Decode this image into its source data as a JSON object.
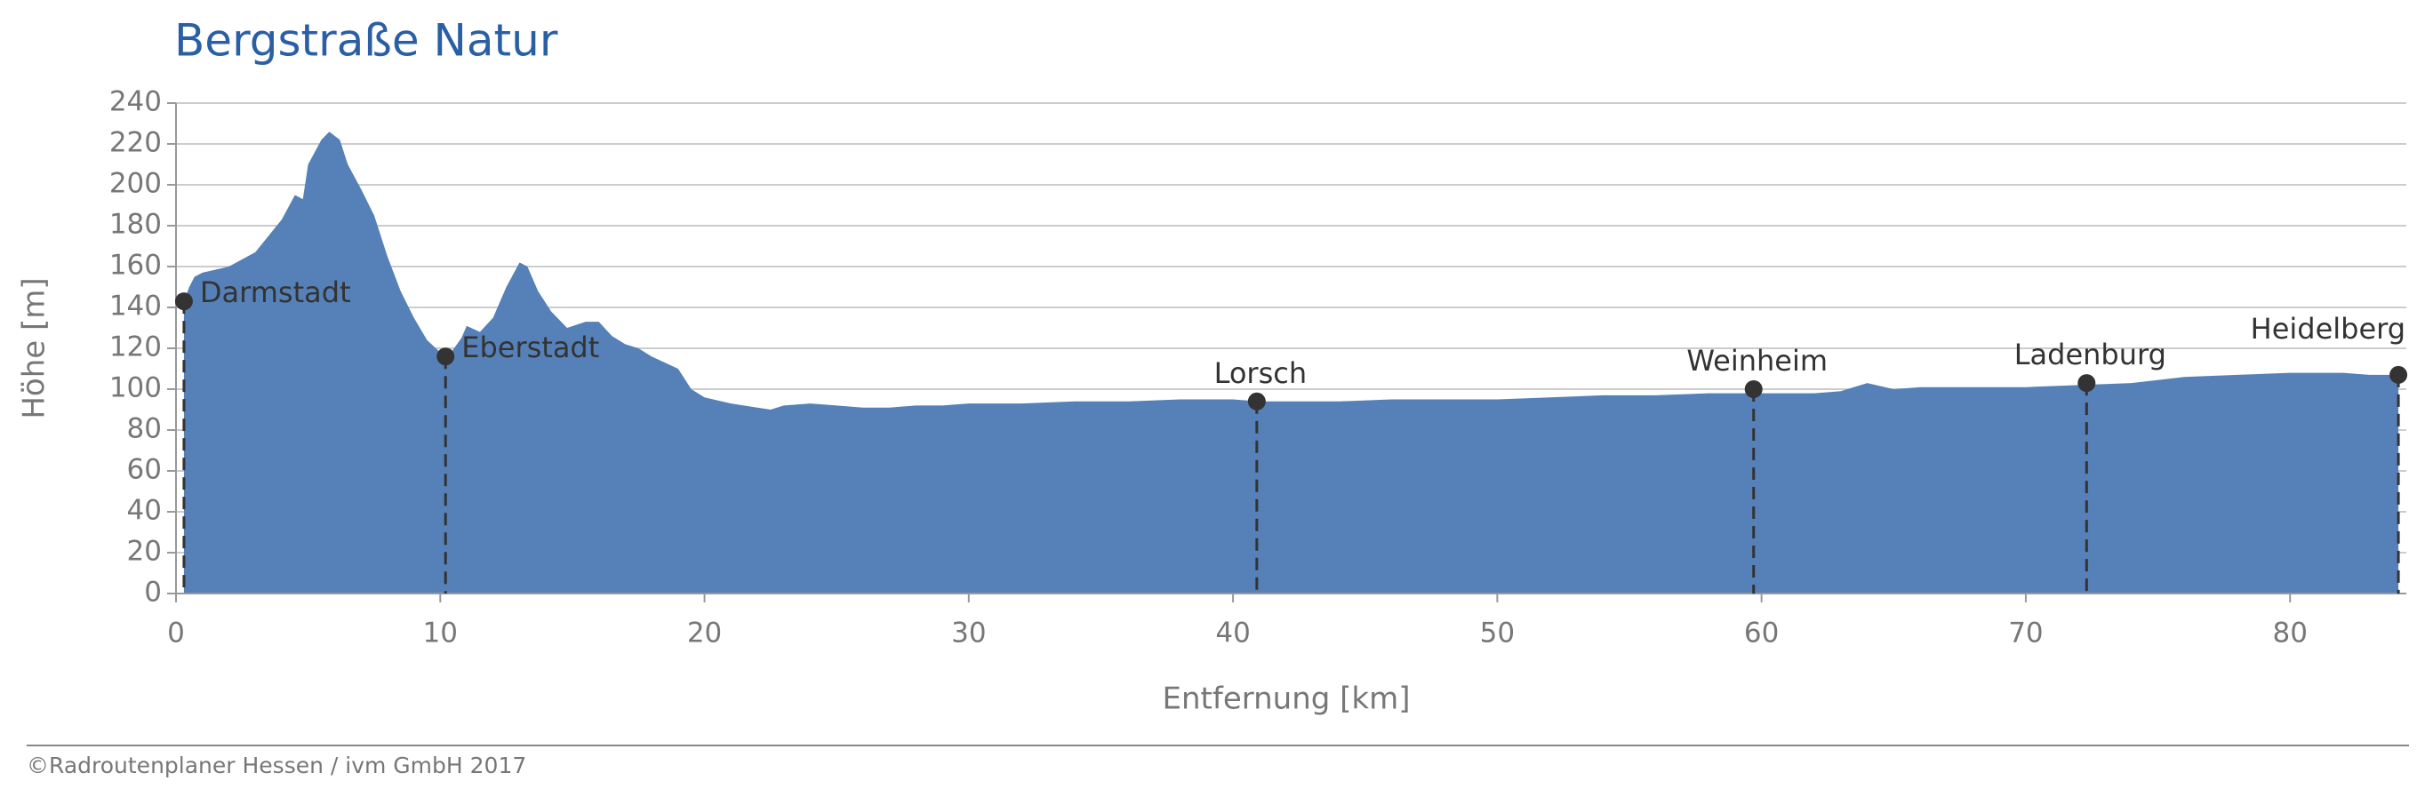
{
  "chart_data": {
    "type": "area",
    "title": "Bergstraße Natur",
    "xlabel": "Entfernung [km]",
    "ylabel": "Höhe [m]",
    "color": "#5581b8",
    "grid": true,
    "xlim": [
      0,
      84.4
    ],
    "ylim": [
      0,
      240
    ],
    "xticks": [
      0,
      10,
      20,
      30,
      40,
      50,
      60,
      70,
      80
    ],
    "yticks": [
      0,
      20,
      40,
      60,
      80,
      100,
      120,
      140,
      160,
      180,
      200,
      220,
      240
    ],
    "x": [
      0.3,
      0.5,
      0.7,
      1,
      2,
      3,
      4,
      4.5,
      4.8,
      5,
      5.5,
      5.8,
      6.2,
      6.5,
      7,
      7.5,
      8,
      8.5,
      9,
      9.5,
      10,
      10.3,
      10.8,
      11,
      11.5,
      12,
      12.5,
      13,
      13.3,
      13.7,
      14.2,
      14.8,
      15.5,
      16,
      16.5,
      17,
      17.5,
      18,
      18.5,
      19,
      19.5,
      20,
      21,
      22,
      22.5,
      23,
      24,
      25,
      26,
      27,
      28,
      29,
      30,
      32,
      34,
      36,
      38,
      40,
      41,
      42,
      44,
      46,
      48,
      50,
      52,
      54,
      56,
      58,
      60,
      62,
      63,
      64,
      65,
      66,
      68,
      70,
      72,
      74,
      76,
      78,
      80,
      82,
      83,
      84.1
    ],
    "values": [
      143,
      150,
      155,
      157,
      160,
      167,
      183,
      195,
      193,
      210,
      222,
      226,
      222,
      210,
      198,
      185,
      165,
      148,
      135,
      124,
      118,
      116,
      125,
      131,
      128,
      135,
      150,
      162,
      160,
      148,
      138,
      130,
      133,
      133,
      126,
      122,
      120,
      116,
      113,
      110,
      100,
      96,
      93,
      91,
      90,
      92,
      93,
      92,
      91,
      91,
      92,
      92,
      93,
      93,
      94,
      94,
      95,
      95,
      94,
      94,
      94,
      95,
      95,
      95,
      96,
      97,
      97,
      98,
      98,
      98,
      99,
      103,
      100,
      101,
      101,
      101,
      102,
      103,
      106,
      107,
      108,
      108,
      107,
      107
    ],
    "waypoints": [
      {
        "name": "Darmstadt",
        "x": 0.3,
        "y": 143
      },
      {
        "name": "Eberstadt",
        "x": 10.2,
        "y": 116
      },
      {
        "name": "Lorsch",
        "x": 40.9,
        "y": 94
      },
      {
        "name": "Weinheim",
        "x": 59.7,
        "y": 100
      },
      {
        "name": "Ladenburg",
        "x": 72.3,
        "y": 103
      },
      {
        "name": "Heidelberg",
        "x": 84.1,
        "y": 107
      }
    ]
  },
  "footer": "©Radroutenplaner Hessen / ivm GmbH 2017"
}
